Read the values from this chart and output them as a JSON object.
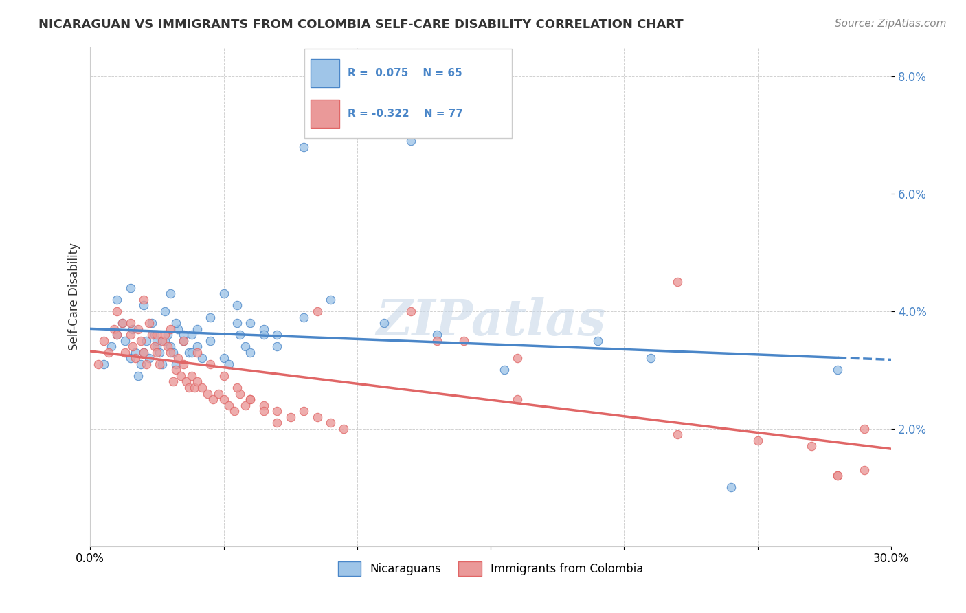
{
  "title": "NICARAGUAN VS IMMIGRANTS FROM COLOMBIA SELF-CARE DISABILITY CORRELATION CHART",
  "source": "Source: ZipAtlas.com",
  "ylabel": "Self-Care Disability",
  "xlim": [
    0.0,
    0.3
  ],
  "ylim": [
    0.0,
    0.085
  ],
  "yticks": [
    0.02,
    0.04,
    0.06,
    0.08
  ],
  "ytick_labels": [
    "2.0%",
    "4.0%",
    "6.0%",
    "8.0%"
  ],
  "xticks": [
    0.0,
    0.05,
    0.1,
    0.15,
    0.2,
    0.25,
    0.3
  ],
  "xtick_labels": [
    "0.0%",
    "",
    "",
    "",
    "",
    "",
    "30.0%"
  ],
  "blue_R": 0.075,
  "blue_N": 65,
  "pink_R": -0.322,
  "pink_N": 77,
  "blue_color": "#9fc5e8",
  "pink_color": "#ea9999",
  "blue_line_color": "#4a86c8",
  "pink_line_color": "#e06666",
  "background_color": "#ffffff",
  "grid_color": "#cccccc",
  "legend_label_blue": "Nicaraguans",
  "legend_label_pink": "Immigrants from Colombia",
  "blue_scatter_x": [
    0.005,
    0.008,
    0.01,
    0.012,
    0.013,
    0.015,
    0.016,
    0.017,
    0.018,
    0.019,
    0.02,
    0.021,
    0.022,
    0.023,
    0.024,
    0.025,
    0.026,
    0.027,
    0.028,
    0.029,
    0.03,
    0.031,
    0.032,
    0.033,
    0.035,
    0.037,
    0.038,
    0.04,
    0.042,
    0.045,
    0.05,
    0.052,
    0.055,
    0.056,
    0.058,
    0.06,
    0.065,
    0.07,
    0.08,
    0.09,
    0.01,
    0.015,
    0.02,
    0.025,
    0.028,
    0.03,
    0.032,
    0.035,
    0.038,
    0.04,
    0.045,
    0.05,
    0.055,
    0.06,
    0.065,
    0.07,
    0.11,
    0.13,
    0.155,
    0.21,
    0.24,
    0.08,
    0.12,
    0.19,
    0.28
  ],
  "blue_scatter_y": [
    0.031,
    0.034,
    0.036,
    0.038,
    0.035,
    0.032,
    0.037,
    0.033,
    0.029,
    0.031,
    0.033,
    0.035,
    0.032,
    0.038,
    0.036,
    0.034,
    0.033,
    0.031,
    0.035,
    0.036,
    0.034,
    0.033,
    0.031,
    0.037,
    0.035,
    0.033,
    0.036,
    0.034,
    0.032,
    0.035,
    0.032,
    0.031,
    0.038,
    0.036,
    0.034,
    0.033,
    0.037,
    0.036,
    0.039,
    0.042,
    0.042,
    0.044,
    0.041,
    0.035,
    0.04,
    0.043,
    0.038,
    0.036,
    0.033,
    0.037,
    0.039,
    0.043,
    0.041,
    0.038,
    0.036,
    0.034,
    0.038,
    0.036,
    0.03,
    0.032,
    0.01,
    0.068,
    0.069,
    0.035,
    0.03
  ],
  "pink_scatter_x": [
    0.003,
    0.005,
    0.007,
    0.009,
    0.01,
    0.012,
    0.013,
    0.015,
    0.016,
    0.017,
    0.018,
    0.019,
    0.02,
    0.021,
    0.022,
    0.023,
    0.024,
    0.025,
    0.026,
    0.027,
    0.028,
    0.029,
    0.03,
    0.031,
    0.032,
    0.033,
    0.034,
    0.035,
    0.036,
    0.037,
    0.038,
    0.039,
    0.04,
    0.042,
    0.044,
    0.046,
    0.048,
    0.05,
    0.052,
    0.054,
    0.056,
    0.058,
    0.06,
    0.065,
    0.07,
    0.075,
    0.08,
    0.085,
    0.09,
    0.095,
    0.01,
    0.015,
    0.02,
    0.025,
    0.03,
    0.035,
    0.04,
    0.045,
    0.05,
    0.055,
    0.06,
    0.065,
    0.07,
    0.12,
    0.14,
    0.16,
    0.22,
    0.25,
    0.27,
    0.29,
    0.13,
    0.085,
    0.16,
    0.22,
    0.28,
    0.29,
    0.28
  ],
  "pink_scatter_y": [
    0.031,
    0.035,
    0.033,
    0.037,
    0.036,
    0.038,
    0.033,
    0.036,
    0.034,
    0.032,
    0.037,
    0.035,
    0.033,
    0.031,
    0.038,
    0.036,
    0.034,
    0.033,
    0.031,
    0.035,
    0.036,
    0.034,
    0.033,
    0.028,
    0.03,
    0.032,
    0.029,
    0.031,
    0.028,
    0.027,
    0.029,
    0.027,
    0.028,
    0.027,
    0.026,
    0.025,
    0.026,
    0.025,
    0.024,
    0.023,
    0.026,
    0.024,
    0.025,
    0.024,
    0.023,
    0.022,
    0.023,
    0.022,
    0.021,
    0.02,
    0.04,
    0.038,
    0.042,
    0.036,
    0.037,
    0.035,
    0.033,
    0.031,
    0.029,
    0.027,
    0.025,
    0.023,
    0.021,
    0.04,
    0.035,
    0.032,
    0.019,
    0.018,
    0.017,
    0.02,
    0.035,
    0.04,
    0.025,
    0.045,
    0.012,
    0.013,
    0.012
  ]
}
